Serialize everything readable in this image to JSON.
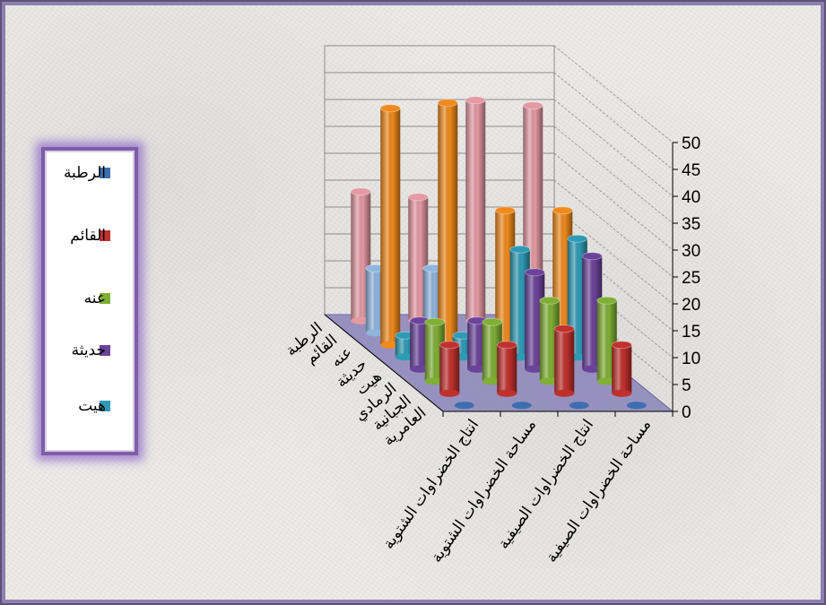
{
  "chart_data": {
    "type": "bar",
    "variant": "3d-column",
    "categories": [
      "انتاج الخضراوات الشتوية",
      "مساحة الخضراوات الشتوية",
      "انتاج الخضراوات الصيفية",
      "مساحة الخضراوات الصيفية"
    ],
    "series": [
      {
        "name": "الرطبة",
        "values": [
          0,
          0,
          0,
          0
        ],
        "color": "#3d6fb0"
      },
      {
        "name": "القائم",
        "values": [
          9,
          9,
          12,
          9
        ],
        "color": "#c0312e"
      },
      {
        "name": "عنه",
        "values": [
          11,
          11,
          15,
          15
        ],
        "color": "#7faf34"
      },
      {
        "name": "حديثة",
        "values": [
          9,
          9,
          18,
          21
        ],
        "color": "#6b439a"
      },
      {
        "name": "هيت",
        "values": [
          4,
          4,
          20,
          22
        ],
        "color": "#2e9bb5"
      },
      {
        "name": "الرمادي",
        "values": [
          44,
          45,
          25,
          25
        ],
        "color": "#f08a1c"
      },
      {
        "name": "الجبانية",
        "values": [
          12,
          12,
          0,
          0
        ],
        "color": "#8fb5de"
      },
      {
        "name": "العامرية",
        "values": [
          24,
          23,
          41,
          40
        ],
        "color": "#e59aa3"
      }
    ],
    "depth_labels": [
      "العامرية",
      "الجبانية",
      "الرمادي",
      "هيت",
      "حديثة",
      "عنه",
      "القائم",
      "الرطبة"
    ],
    "y_ticks": [
      "0",
      "5",
      "10",
      "15",
      "20",
      "25",
      "30",
      "35",
      "40",
      "45",
      "50"
    ],
    "ylim": [
      0,
      50
    ],
    "grid": true,
    "legend_position": "left",
    "legend": [
      "الرطبة",
      "القائم",
      "عنه",
      "حديثة",
      "هيت"
    ]
  }
}
